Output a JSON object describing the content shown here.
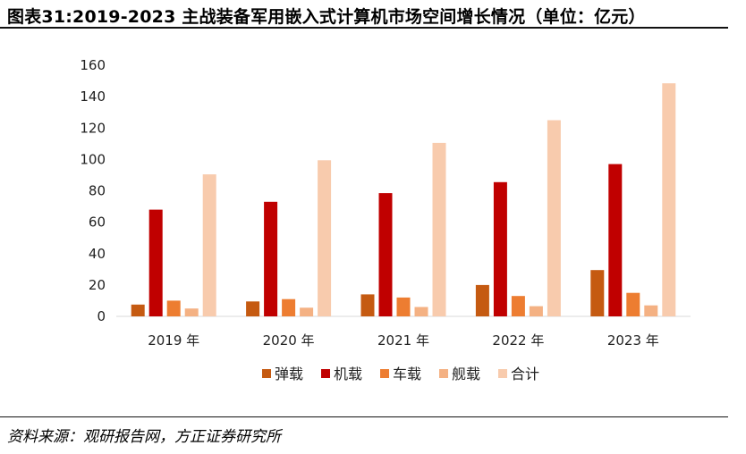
{
  "title": "图表31:2019-2023 主战装备军用嵌入式计算机市场空间增长情况（单位：亿元）",
  "source": "资料来源：观研报告网，方正证券研究所",
  "chart_data": {
    "type": "bar",
    "title": "图表31:2019-2023 主战装备军用嵌入式计算机市场空间增长情况（单位：亿元）",
    "unit": "亿元",
    "categories": [
      "2019 年",
      "2020 年",
      "2021 年",
      "2022 年",
      "2023 年"
    ],
    "series": [
      {
        "name": "弹载",
        "color": "#c55a11",
        "values": [
          7.5,
          9.5,
          14,
          20,
          29.5
        ]
      },
      {
        "name": "机载",
        "color": "#c00000",
        "values": [
          68,
          73,
          78.5,
          85.5,
          97
        ]
      },
      {
        "name": "车载",
        "color": "#ed7d31",
        "values": [
          10,
          11,
          12,
          13,
          15
        ]
      },
      {
        "name": "舰载",
        "color": "#f4b183",
        "values": [
          5,
          5.5,
          6,
          6.5,
          7
        ]
      },
      {
        "name": "合计",
        "color": "#f8cbad",
        "values": [
          90.5,
          99.5,
          110.5,
          125,
          148.5
        ]
      }
    ],
    "yticks": [
      0,
      20,
      40,
      60,
      80,
      100,
      120,
      140,
      160
    ],
    "ylim": [
      0,
      160
    ],
    "xlabel": "",
    "ylabel": "",
    "legend": "bottom",
    "grid": false
  }
}
